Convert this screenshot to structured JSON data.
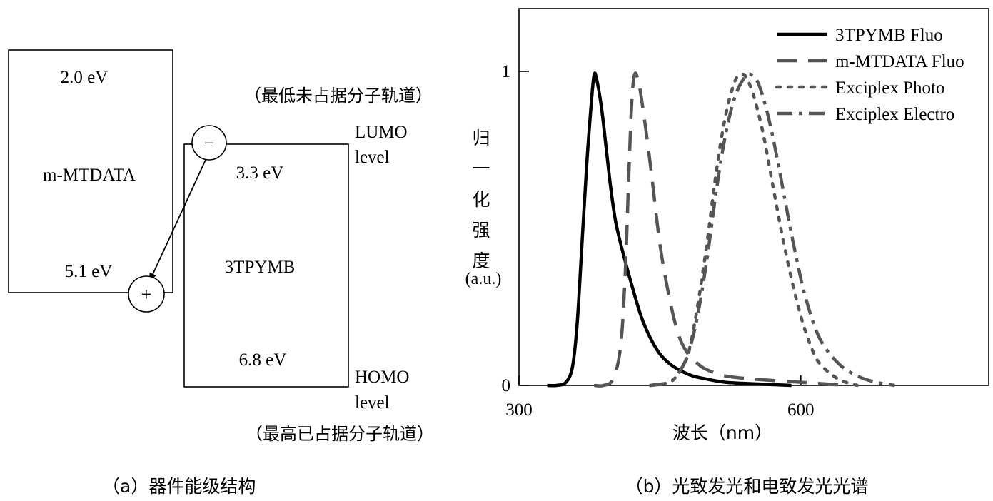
{
  "panel_a": {
    "mmtdata": {
      "name": "m-MTDATA",
      "lumo": "2.0 eV",
      "homo": "5.1 eV"
    },
    "tpymb": {
      "name": "3TPYMB",
      "lumo": "3.3 eV",
      "homo": "6.8 eV"
    },
    "electron_symbol": "−",
    "hole_symbol": "+",
    "lumo_cn": "（最低未占据分子轨道）",
    "lumo_label_1": "LUMO",
    "lumo_label_2": "level",
    "homo_label_1": "HOMO",
    "homo_label_2": "level",
    "homo_cn": "（最高已占据分子轨道）",
    "caption": "（a）器件能级结构"
  },
  "panel_b": {
    "caption": "（b）光致发光和电致发光光谱"
  },
  "chart_data": {
    "type": "line",
    "title": "",
    "xlabel": "波长（nm）",
    "ylabel_chars": [
      "归",
      "一",
      "化",
      "强",
      "度"
    ],
    "ylabel_unit": "(a.u.)",
    "xlim": [
      300,
      800
    ],
    "ylim": [
      0,
      1.2
    ],
    "xticks": [
      300,
      600
    ],
    "yticks": [
      0,
      1
    ],
    "grid": false,
    "legend_position": "top-right",
    "series": [
      {
        "name": "3TPYMB Fluo",
        "color": "#000000",
        "dash": "solid",
        "x": [
          330,
          340,
          350,
          357,
          362,
          367,
          372,
          377,
          380,
          383,
          388,
          393,
          398,
          403,
          410,
          420,
          430,
          440,
          450,
          460,
          470,
          485,
          500,
          520,
          550,
          590
        ],
        "y": [
          0,
          0,
          0.01,
          0.06,
          0.2,
          0.45,
          0.7,
          0.9,
          0.99,
          0.97,
          0.88,
          0.75,
          0.62,
          0.52,
          0.43,
          0.32,
          0.22,
          0.15,
          0.1,
          0.07,
          0.05,
          0.03,
          0.02,
          0.01,
          0.005,
          0
        ]
      },
      {
        "name": "m-MTDATA Fluo",
        "color": "#555555",
        "dash": "long-dash",
        "x": [
          380,
          390,
          400,
          408,
          413,
          417,
          420,
          423,
          427,
          432,
          440,
          450,
          460,
          470,
          480,
          490,
          500,
          520,
          550,
          600,
          650
        ],
        "y": [
          0,
          0,
          0.02,
          0.12,
          0.35,
          0.68,
          0.9,
          0.99,
          0.97,
          0.88,
          0.7,
          0.45,
          0.28,
          0.16,
          0.1,
          0.07,
          0.05,
          0.03,
          0.02,
          0.01,
          0
        ],
        "_": ""
      },
      {
        "name": "Exciplex Photo",
        "color": "#555555",
        "dash": "dotted",
        "x": [
          440,
          460,
          470,
          480,
          490,
          500,
          510,
          520,
          530,
          537,
          542,
          550,
          560,
          570,
          580,
          590,
          600,
          610,
          620,
          640,
          660
        ],
        "y": [
          0,
          0.01,
          0.04,
          0.1,
          0.25,
          0.45,
          0.68,
          0.86,
          0.97,
          0.99,
          0.98,
          0.92,
          0.8,
          0.64,
          0.48,
          0.34,
          0.22,
          0.13,
          0.07,
          0.02,
          0
        ]
      },
      {
        "name": "Exciplex Electro",
        "color": "#555555",
        "dash": "dash-dot",
        "x": [
          440,
          460,
          470,
          480,
          490,
          500,
          510,
          520,
          530,
          540,
          547,
          555,
          565,
          575,
          585,
          595,
          605,
          620,
          640,
          660,
          680,
          700
        ],
        "y": [
          0,
          0.01,
          0.04,
          0.1,
          0.22,
          0.4,
          0.62,
          0.8,
          0.92,
          0.98,
          0.99,
          0.96,
          0.86,
          0.72,
          0.56,
          0.41,
          0.28,
          0.15,
          0.07,
          0.03,
          0.01,
          0
        ]
      }
    ]
  }
}
